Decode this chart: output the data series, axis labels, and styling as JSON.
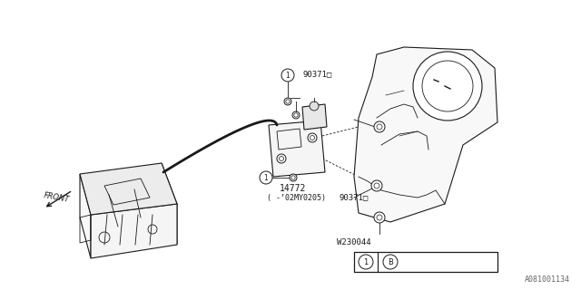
{
  "bg_color": "#ffffff",
  "line_color": "#1a1a1a",
  "gray_color": "#888888",
  "fig_width": 6.4,
  "fig_height": 3.2,
  "dpi": 100,
  "part_labels": {
    "90371_top": "90371□",
    "90371_bot": "90371□",
    "14772": "14772",
    "date_range": "( -’02MY0205)",
    "W230044": "W230044",
    "diagram_id": "A081001134"
  }
}
